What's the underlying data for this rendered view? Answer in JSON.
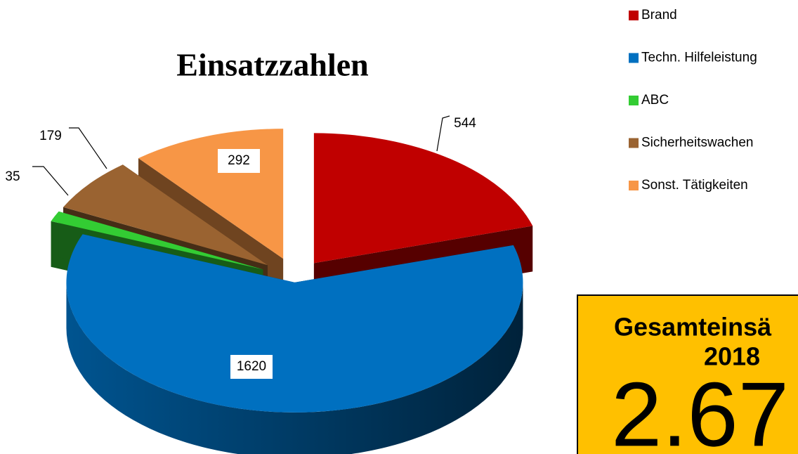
{
  "chart_data": {
    "type": "pie3d",
    "title": "Einsatzzahlen",
    "categories": [
      "Brand",
      "Techn. Hilfeleistung",
      "ABC",
      "Sicherheitswachen",
      "Sonst. Tätigkeiten"
    ],
    "values": [
      544,
      1620,
      35,
      179,
      292
    ],
    "colors": [
      "#c00000",
      "#0070c0",
      "#33cc33",
      "#9a6331",
      "#f79646"
    ],
    "legend": "top-right"
  },
  "info_box": {
    "title": "Gesamteinsä",
    "year": "2018",
    "total": "2.67"
  }
}
